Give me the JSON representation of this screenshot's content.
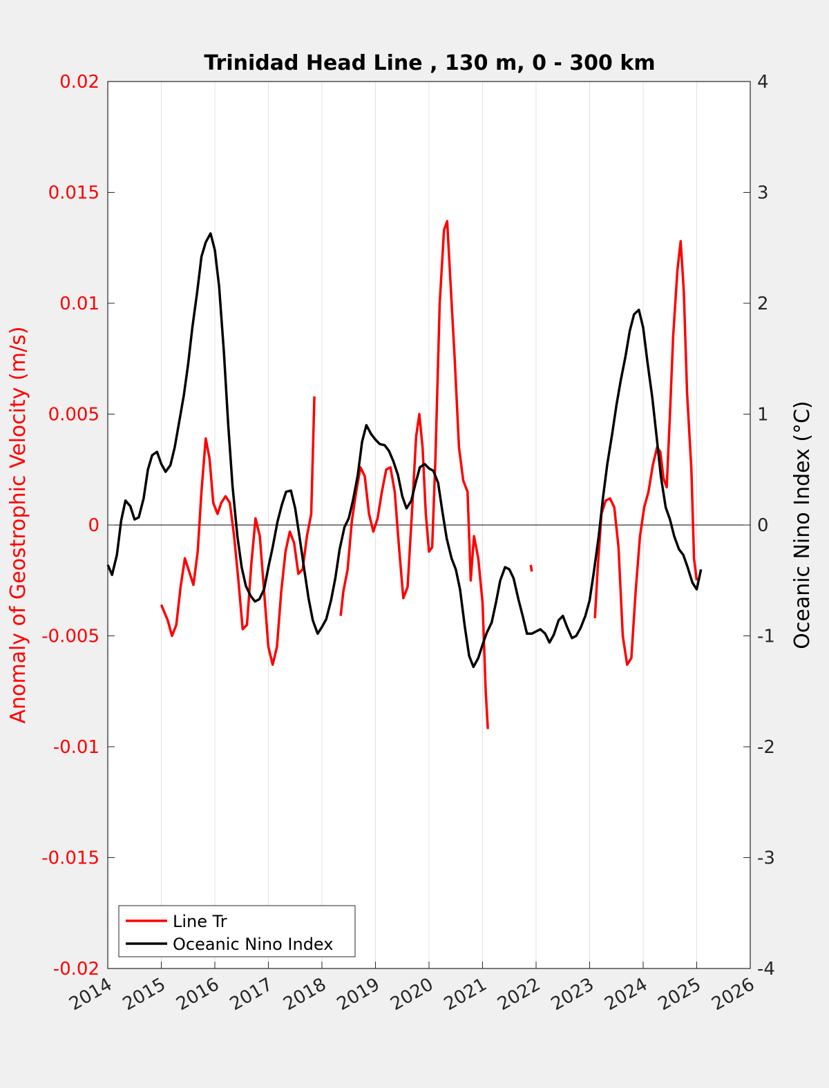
{
  "chart_data": {
    "type": "line",
    "title": "Trinidad Head Line , 130 m, 0 - 300 km",
    "xlabel": "",
    "ylabel_left": "Anomaly of Geostrophic Velocity (m/s)",
    "ylabel_right": "Oceanic Nino Index (°C)",
    "xlim": [
      2014,
      2026
    ],
    "ylim_left": [
      -0.02,
      0.02
    ],
    "ylim_right": [
      -4,
      4
    ],
    "x_ticks": [
      "2014",
      "2015",
      "2016",
      "2017",
      "2018",
      "2019",
      "2020",
      "2021",
      "2022",
      "2023",
      "2024",
      "2025",
      "2026"
    ],
    "y_ticks_left": [
      "-0.02",
      "-0.015",
      "-0.01",
      "-0.005",
      "0",
      "0.005",
      "0.01",
      "0.015",
      "0.02"
    ],
    "y_ticks_right": [
      "-4",
      "-3",
      "-2",
      "-1",
      "0",
      "1",
      "2",
      "3",
      "4"
    ],
    "grid": "vertical",
    "legend_position": "bottom-left",
    "colors": {
      "line_tr": "#ff0000",
      "oni": "#000000",
      "zero_line": "#000000"
    },
    "series": [
      {
        "name": "Line Tr",
        "axis": "left",
        "color": "#ff0000",
        "segments": [
          [
            [
              2015.0,
              -0.0036
            ],
            [
              2015.12,
              -0.0043
            ],
            [
              2015.2,
              -0.005
            ],
            [
              2015.28,
              -0.0045
            ],
            [
              2015.36,
              -0.0028
            ],
            [
              2015.44,
              -0.0015
            ],
            [
              2015.52,
              -0.0021
            ],
            [
              2015.6,
              -0.0027
            ],
            [
              2015.68,
              -0.0012
            ],
            [
              2015.75,
              0.0015
            ],
            [
              2015.83,
              0.0039
            ],
            [
              2015.9,
              0.003
            ],
            [
              2015.97,
              0.001
            ],
            [
              2016.05,
              0.0005
            ],
            [
              2016.12,
              0.001
            ],
            [
              2016.2,
              0.0013
            ],
            [
              2016.28,
              0.001
            ],
            [
              2016.36,
              -0.0005
            ],
            [
              2016.44,
              -0.0025
            ],
            [
              2016.52,
              -0.0047
            ],
            [
              2016.6,
              -0.0045
            ],
            [
              2016.68,
              -0.0018
            ],
            [
              2016.76,
              0.0003
            ],
            [
              2016.84,
              -0.0005
            ],
            [
              2016.92,
              -0.003
            ],
            [
              2017.0,
              -0.0055
            ],
            [
              2017.08,
              -0.0063
            ],
            [
              2017.16,
              -0.0055
            ],
            [
              2017.24,
              -0.003
            ],
            [
              2017.32,
              -0.0012
            ],
            [
              2017.4,
              -0.0003
            ],
            [
              2017.48,
              -0.0008
            ],
            [
              2017.56,
              -0.0022
            ],
            [
              2017.64,
              -0.002
            ],
            [
              2017.72,
              -0.0005
            ],
            [
              2017.8,
              0.0005
            ],
            [
              2017.86,
              0.0058
            ]
          ],
          [
            [
              2018.35,
              -0.0041
            ],
            [
              2018.4,
              -0.003
            ],
            [
              2018.48,
              -0.002
            ],
            [
              2018.56,
              0.0002
            ],
            [
              2018.64,
              0.0015
            ],
            [
              2018.72,
              0.0026
            ],
            [
              2018.8,
              0.0022
            ],
            [
              2018.88,
              0.0005
            ],
            [
              2018.96,
              -0.0003
            ],
            [
              2019.04,
              0.0003
            ],
            [
              2019.12,
              0.0015
            ],
            [
              2019.2,
              0.0025
            ],
            [
              2019.28,
              0.0026
            ],
            [
              2019.36,
              0.0015
            ],
            [
              2019.44,
              -0.001
            ],
            [
              2019.52,
              -0.0033
            ],
            [
              2019.6,
              -0.0028
            ],
            [
              2019.68,
              0.0005
            ],
            [
              2019.76,
              0.004
            ],
            [
              2019.82,
              0.005
            ],
            [
              2019.88,
              0.0035
            ],
            [
              2019.94,
              0.0005
            ],
            [
              2020.0,
              -0.0012
            ],
            [
              2020.06,
              -0.001
            ],
            [
              2020.12,
              0.003
            ],
            [
              2020.2,
              0.01
            ],
            [
              2020.28,
              0.0133
            ],
            [
              2020.34,
              0.0137
            ],
            [
              2020.4,
              0.011
            ],
            [
              2020.48,
              0.0075
            ],
            [
              2020.56,
              0.0035
            ],
            [
              2020.64,
              0.002
            ],
            [
              2020.72,
              0.0015
            ],
            [
              2020.78,
              -0.0025
            ],
            [
              2020.84,
              -0.0005
            ],
            [
              2020.92,
              -0.0015
            ],
            [
              2021.0,
              -0.0035
            ],
            [
              2021.06,
              -0.0075
            ],
            [
              2021.1,
              -0.0092
            ]
          ],
          [
            [
              2021.9,
              -0.0018
            ],
            [
              2021.92,
              -0.0021
            ]
          ],
          [
            [
              2023.1,
              -0.0042
            ],
            [
              2023.15,
              -0.002
            ],
            [
              2023.22,
              0.0005
            ],
            [
              2023.3,
              0.0011
            ],
            [
              2023.38,
              0.0012
            ],
            [
              2023.46,
              0.0008
            ],
            [
              2023.54,
              -0.001
            ],
            [
              2023.62,
              -0.005
            ],
            [
              2023.7,
              -0.0063
            ],
            [
              2023.78,
              -0.006
            ],
            [
              2023.86,
              -0.003
            ],
            [
              2023.94,
              -0.0005
            ],
            [
              2024.02,
              0.0008
            ],
            [
              2024.1,
              0.0015
            ],
            [
              2024.18,
              0.0027
            ],
            [
              2024.26,
              0.0035
            ],
            [
              2024.32,
              0.0033
            ],
            [
              2024.38,
              0.0021
            ],
            [
              2024.44,
              0.0017
            ],
            [
              2024.5,
              0.005
            ],
            [
              2024.56,
              0.0085
            ],
            [
              2024.64,
              0.0115
            ],
            [
              2024.7,
              0.0128
            ],
            [
              2024.76,
              0.0105
            ],
            [
              2024.82,
              0.006
            ],
            [
              2024.9,
              0.0025
            ],
            [
              2024.95,
              -0.0015
            ],
            [
              2025.0,
              -0.0025
            ]
          ]
        ]
      },
      {
        "name": "Oceanic Nino Index",
        "axis": "right",
        "color": "#000000",
        "segments": [
          [
            [
              2014.0,
              -0.36
            ],
            [
              2014.08,
              -0.45
            ],
            [
              2014.17,
              -0.27
            ],
            [
              2014.25,
              0.04
            ],
            [
              2014.33,
              0.22
            ],
            [
              2014.42,
              0.17
            ],
            [
              2014.5,
              0.05
            ],
            [
              2014.58,
              0.07
            ],
            [
              2014.67,
              0.24
            ],
            [
              2014.75,
              0.5
            ],
            [
              2014.83,
              0.63
            ],
            [
              2014.92,
              0.66
            ],
            [
              2015.0,
              0.55
            ],
            [
              2015.08,
              0.48
            ],
            [
              2015.17,
              0.54
            ],
            [
              2015.25,
              0.7
            ],
            [
              2015.33,
              0.92
            ],
            [
              2015.42,
              1.17
            ],
            [
              2015.5,
              1.45
            ],
            [
              2015.58,
              1.78
            ],
            [
              2015.67,
              2.1
            ],
            [
              2015.75,
              2.42
            ],
            [
              2015.83,
              2.55
            ],
            [
              2015.92,
              2.63
            ],
            [
              2016.0,
              2.48
            ],
            [
              2016.08,
              2.15
            ],
            [
              2016.17,
              1.55
            ],
            [
              2016.25,
              0.9
            ],
            [
              2016.33,
              0.35
            ],
            [
              2016.42,
              -0.1
            ],
            [
              2016.5,
              -0.38
            ],
            [
              2016.58,
              -0.55
            ],
            [
              2016.67,
              -0.64
            ],
            [
              2016.75,
              -0.69
            ],
            [
              2016.83,
              -0.67
            ],
            [
              2016.92,
              -0.58
            ],
            [
              2017.0,
              -0.38
            ],
            [
              2017.08,
              -0.2
            ],
            [
              2017.17,
              0.03
            ],
            [
              2017.25,
              0.18
            ],
            [
              2017.33,
              0.3
            ],
            [
              2017.42,
              0.31
            ],
            [
              2017.5,
              0.15
            ],
            [
              2017.58,
              -0.1
            ],
            [
              2017.67,
              -0.4
            ],
            [
              2017.75,
              -0.66
            ],
            [
              2017.83,
              -0.86
            ],
            [
              2017.92,
              -0.98
            ],
            [
              2018.0,
              -0.92
            ],
            [
              2018.08,
              -0.85
            ],
            [
              2018.17,
              -0.68
            ],
            [
              2018.25,
              -0.48
            ],
            [
              2018.33,
              -0.22
            ],
            [
              2018.42,
              -0.02
            ],
            [
              2018.5,
              0.06
            ],
            [
              2018.58,
              0.22
            ],
            [
              2018.67,
              0.45
            ],
            [
              2018.75,
              0.75
            ],
            [
              2018.83,
              0.9
            ],
            [
              2018.92,
              0.82
            ],
            [
              2019.0,
              0.77
            ],
            [
              2019.08,
              0.73
            ],
            [
              2019.17,
              0.72
            ],
            [
              2019.25,
              0.67
            ],
            [
              2019.33,
              0.58
            ],
            [
              2019.42,
              0.45
            ],
            [
              2019.5,
              0.26
            ],
            [
              2019.58,
              0.15
            ],
            [
              2019.67,
              0.22
            ],
            [
              2019.75,
              0.38
            ],
            [
              2019.83,
              0.52
            ],
            [
              2019.92,
              0.55
            ],
            [
              2020.0,
              0.51
            ],
            [
              2020.08,
              0.49
            ],
            [
              2020.17,
              0.38
            ],
            [
              2020.25,
              0.12
            ],
            [
              2020.33,
              -0.12
            ],
            [
              2020.42,
              -0.3
            ],
            [
              2020.5,
              -0.4
            ],
            [
              2020.58,
              -0.58
            ],
            [
              2020.67,
              -0.92
            ],
            [
              2020.75,
              -1.18
            ],
            [
              2020.83,
              -1.28
            ],
            [
              2020.92,
              -1.2
            ],
            [
              2021.0,
              -1.08
            ],
            [
              2021.08,
              -0.97
            ],
            [
              2021.17,
              -0.88
            ],
            [
              2021.25,
              -0.7
            ],
            [
              2021.33,
              -0.5
            ],
            [
              2021.42,
              -0.38
            ],
            [
              2021.5,
              -0.4
            ],
            [
              2021.58,
              -0.48
            ],
            [
              2021.67,
              -0.67
            ],
            [
              2021.75,
              -0.82
            ],
            [
              2021.83,
              -0.98
            ],
            [
              2021.92,
              -0.98
            ],
            [
              2022.0,
              -0.96
            ],
            [
              2022.08,
              -0.94
            ],
            [
              2022.17,
              -0.98
            ],
            [
              2022.25,
              -1.06
            ],
            [
              2022.33,
              -0.99
            ],
            [
              2022.42,
              -0.86
            ],
            [
              2022.5,
              -0.82
            ],
            [
              2022.58,
              -0.92
            ],
            [
              2022.67,
              -1.02
            ],
            [
              2022.75,
              -1.0
            ],
            [
              2022.83,
              -0.93
            ],
            [
              2022.92,
              -0.82
            ],
            [
              2023.0,
              -0.68
            ],
            [
              2023.08,
              -0.42
            ],
            [
              2023.17,
              -0.1
            ],
            [
              2023.25,
              0.25
            ],
            [
              2023.33,
              0.55
            ],
            [
              2023.42,
              0.82
            ],
            [
              2023.5,
              1.08
            ],
            [
              2023.58,
              1.3
            ],
            [
              2023.67,
              1.52
            ],
            [
              2023.75,
              1.75
            ],
            [
              2023.83,
              1.9
            ],
            [
              2023.92,
              1.94
            ],
            [
              2024.0,
              1.78
            ],
            [
              2024.08,
              1.47
            ],
            [
              2024.17,
              1.15
            ],
            [
              2024.25,
              0.8
            ],
            [
              2024.33,
              0.44
            ],
            [
              2024.42,
              0.16
            ],
            [
              2024.5,
              0.05
            ],
            [
              2024.58,
              -0.1
            ],
            [
              2024.67,
              -0.22
            ],
            [
              2024.75,
              -0.27
            ],
            [
              2024.83,
              -0.38
            ],
            [
              2024.92,
              -0.52
            ],
            [
              2025.0,
              -0.58
            ],
            [
              2025.08,
              -0.4
            ]
          ]
        ]
      }
    ]
  }
}
